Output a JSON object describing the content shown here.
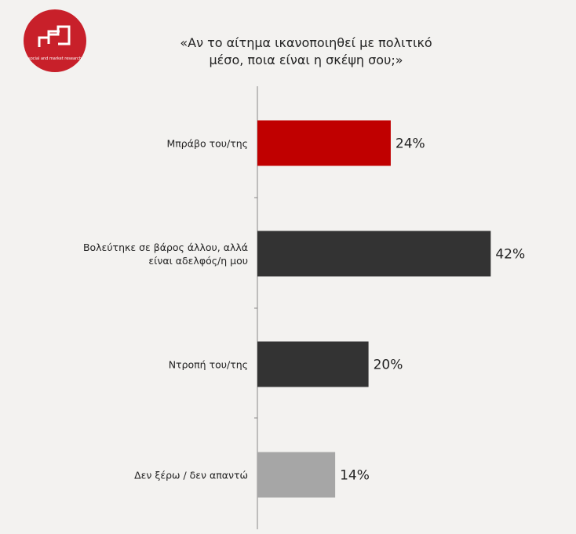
{
  "logo": {
    "text": "social and market research"
  },
  "chart_data": {
    "type": "barh",
    "title": [
      "«Αν το αίτημα ικανοποιηθεί με πολιτικό",
      "μέσο, ποια είναι η σκέψη σου;»"
    ],
    "categories": [
      "Μπράβο του/της",
      "Βολεύτηκε σε βάρος άλλου, αλλά είναι αδελφός/η μου",
      "Ντροπή του/της",
      "Δεν ξέρω / δεν απαντώ"
    ],
    "values": [
      24,
      42,
      20,
      14
    ],
    "value_labels": [
      "24%",
      "42%",
      "20%",
      "14%"
    ],
    "colors": [
      "#c00000",
      "#333333",
      "#333333",
      "#a6a6a6"
    ],
    "xlim": [
      0,
      50
    ]
  }
}
